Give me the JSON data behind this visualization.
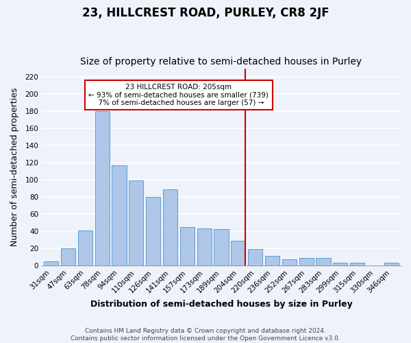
{
  "title": "23, HILLCREST ROAD, PURLEY, CR8 2JF",
  "subtitle": "Size of property relative to semi-detached houses in Purley",
  "xlabel": "Distribution of semi-detached houses by size in Purley",
  "ylabel": "Number of semi-detached properties",
  "categories": [
    "31sqm",
    "47sqm",
    "63sqm",
    "78sqm",
    "94sqm",
    "110sqm",
    "126sqm",
    "141sqm",
    "157sqm",
    "173sqm",
    "189sqm",
    "204sqm",
    "220sqm",
    "236sqm",
    "252sqm",
    "267sqm",
    "283sqm",
    "299sqm",
    "315sqm",
    "330sqm",
    "346sqm"
  ],
  "values": [
    5,
    20,
    41,
    180,
    117,
    99,
    80,
    89,
    45,
    43,
    42,
    29,
    19,
    11,
    7,
    9,
    9,
    3,
    3,
    0,
    3
  ],
  "bar_color": "#aec6e8",
  "bar_edge_color": "#5a9fd4",
  "highlight_index": 11,
  "highlight_color": "#cc0000",
  "highlight_label": "23 HILLCREST ROAD: 205sqm",
  "smaller_pct": "93%",
  "smaller_count": 739,
  "larger_pct": "7%",
  "larger_count": 57,
  "annotation_box_color": "#cc0000",
  "ylim": [
    0,
    230
  ],
  "yticks": [
    0,
    20,
    40,
    60,
    80,
    100,
    120,
    140,
    160,
    180,
    200,
    220
  ],
  "footer": "Contains HM Land Registry data © Crown copyright and database right 2024.\nContains public sector information licensed under the Open Government Licence v3.0.",
  "background_color": "#eef2fb",
  "grid_color": "#ffffff",
  "title_fontsize": 12,
  "subtitle_fontsize": 10,
  "tick_fontsize": 7.5,
  "label_fontsize": 9,
  "footer_fontsize": 6.5
}
